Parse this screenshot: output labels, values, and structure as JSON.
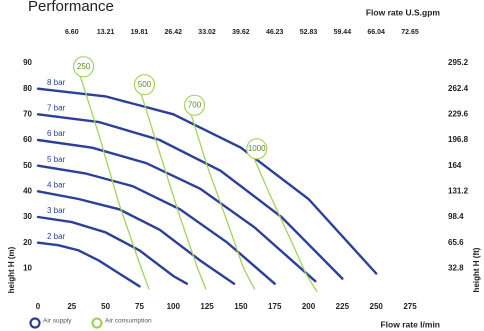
{
  "chart_data": {
    "type": "line",
    "title": "Performance",
    "x_label": "Flow rate  l/min",
    "x2_label": "Flow rate U.S.gpm",
    "y_label": "height H (m)",
    "y2_label": "height H (ft)",
    "xlim": [
      0,
      275
    ],
    "xticks": [
      0,
      25,
      50,
      75,
      100,
      125,
      150,
      175,
      200,
      225,
      250,
      275
    ],
    "x2lim": [
      0,
      72.65
    ],
    "x2ticks": [
      {
        "value": 6.6,
        "label": "6.60"
      },
      13.21,
      19.81,
      26.42,
      33.02,
      39.62,
      46.23,
      52.83,
      59.44,
      66.04,
      72.65
    ],
    "ylim": [
      0,
      90
    ],
    "yticks": [
      10,
      20,
      30,
      40,
      50,
      60,
      70,
      80,
      90
    ],
    "y2lim": [
      0,
      295.2
    ],
    "y2ticks": [
      32.8,
      65.6,
      98.4,
      131.2,
      164,
      196.8,
      229.6,
      262.4,
      295.2
    ],
    "legend": [
      {
        "name": "Air supply",
        "color": "#2b3f9b"
      },
      {
        "name": "Air consumption",
        "color": "#a3d35c"
      }
    ],
    "series": [
      {
        "name": "8 bar",
        "color": "#2b3f9b",
        "x": [
          0,
          50,
          100,
          150,
          200,
          250
        ],
        "values": [
          80,
          77,
          70,
          57,
          37,
          8
        ]
      },
      {
        "name": "7 bar",
        "color": "#2b3f9b",
        "x": [
          0,
          45,
          90,
          135,
          180,
          225
        ],
        "values": [
          70,
          67,
          60,
          48,
          30,
          6
        ]
      },
      {
        "name": "6 bar",
        "color": "#2b3f9b",
        "x": [
          0,
          40,
          80,
          120,
          160,
          205
        ],
        "values": [
          60,
          57,
          51,
          41,
          26,
          5
        ]
      },
      {
        "name": "5 bar",
        "color": "#2b3f9b",
        "x": [
          0,
          35,
          70,
          105,
          140,
          175
        ],
        "values": [
          50,
          47,
          42,
          33,
          20,
          4
        ]
      },
      {
        "name": "4 bar",
        "color": "#2b3f9b",
        "x": [
          0,
          30,
          60,
          90,
          120,
          145
        ],
        "values": [
          40,
          37,
          33,
          25,
          13,
          4
        ]
      },
      {
        "name": "3 bar",
        "color": "#2b3f9b",
        "x": [
          0,
          25,
          50,
          75,
          100,
          110
        ],
        "values": [
          30,
          28,
          24,
          17,
          7,
          4
        ]
      },
      {
        "name": "2 bar",
        "color": "#2b3f9b",
        "x": [
          0,
          15,
          30,
          45,
          60,
          75
        ],
        "values": [
          20,
          19,
          17,
          13,
          8,
          3
        ]
      },
      {
        "name": "250",
        "color": "#a3d35c",
        "x": [
          30,
          45,
          60,
          75,
          82
        ],
        "values": [
          87,
          62,
          35,
          12,
          2
        ]
      },
      {
        "name": "500",
        "color": "#a3d35c",
        "x": [
          75,
          90,
          105,
          118,
          124
        ],
        "values": [
          80,
          55,
          30,
          10,
          2
        ]
      },
      {
        "name": "700",
        "color": "#a3d35c",
        "x": [
          112,
          125,
          140,
          152,
          160
        ],
        "values": [
          72,
          50,
          28,
          10,
          2
        ]
      },
      {
        "name": "1000",
        "color": "#a3d35c",
        "x": [
          158,
          172,
          186,
          198,
          206
        ],
        "values": [
          55,
          38,
          22,
          8,
          1
        ]
      }
    ]
  }
}
